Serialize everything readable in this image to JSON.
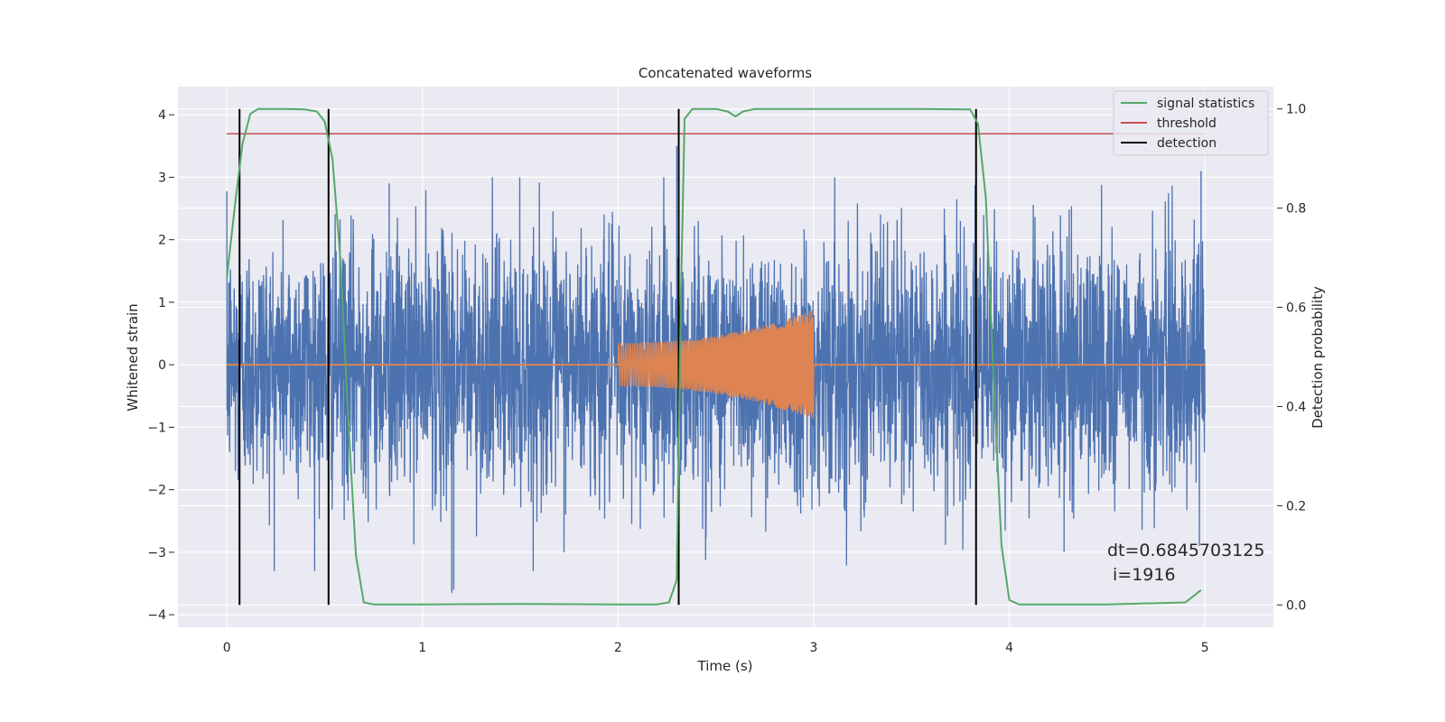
{
  "chart_data": {
    "type": "line",
    "title": "Concatenated waveforms",
    "xlabel": "Time (s)",
    "ylabel": "Whitened strain",
    "y2label": "Detection probability",
    "xlim": [
      -0.25,
      5.35
    ],
    "ylim": [
      -4.2,
      4.45
    ],
    "y2lim": [
      -0.045,
      1.045
    ],
    "xticks": [
      0,
      1,
      2,
      3,
      4,
      5
    ],
    "yticks": [
      -4,
      -3,
      -2,
      -1,
      0,
      1,
      2,
      3,
      4
    ],
    "y2ticks": [
      0.0,
      0.2,
      0.4,
      0.6,
      0.8,
      1.0
    ],
    "grid": true,
    "legend_position": "top-right",
    "style": {
      "background": "#eaeaf2",
      "grid_color": "#ffffff",
      "noise_color": "#4c72b0",
      "template_color": "#dd8452",
      "stat_color": "#55a868",
      "threshold_color": "#c44e52",
      "detection_color": "#000000"
    },
    "series": [
      {
        "name": "",
        "axis": "left",
        "kind": "whitened noise",
        "x_range": [
          0,
          5
        ],
        "amplitude_core": 1.0,
        "peak_values": [
          3.5,
          3.1,
          2.9,
          -3.65,
          -3.6
        ]
      },
      {
        "name": "",
        "axis": "left",
        "kind": "chirp template",
        "segments": [
          {
            "x_start": 2.0,
            "x_end": 3.0,
            "amp_start": 0.35,
            "amp_end": 0.88
          }
        ]
      },
      {
        "name": "signal statistics",
        "axis": "right",
        "x": [
          0.0,
          0.04,
          0.08,
          0.12,
          0.16,
          0.22,
          0.3,
          0.4,
          0.46,
          0.5,
          0.54,
          0.58,
          0.62,
          0.66,
          0.7,
          0.75,
          1.0,
          1.5,
          2.0,
          2.2,
          2.26,
          2.3,
          2.32,
          2.34,
          2.38,
          2.5,
          2.56,
          2.6,
          2.64,
          2.7,
          3.0,
          3.5,
          3.8,
          3.84,
          3.88,
          3.92,
          3.96,
          4.0,
          4.05,
          4.5,
          4.9,
          4.98
        ],
        "values": [
          0.66,
          0.8,
          0.93,
          0.99,
          1.0,
          1.0,
          1.0,
          0.999,
          0.995,
          0.975,
          0.9,
          0.7,
          0.38,
          0.1,
          0.005,
          0.001,
          0.001,
          0.002,
          0.001,
          0.001,
          0.005,
          0.05,
          0.6,
          0.98,
          1.0,
          1.0,
          0.995,
          0.985,
          0.995,
          1.0,
          1.0,
          1.0,
          0.999,
          0.97,
          0.82,
          0.45,
          0.12,
          0.01,
          0.001,
          0.001,
          0.005,
          0.03
        ]
      },
      {
        "name": "threshold",
        "axis": "right",
        "x": [
          0,
          5
        ],
        "values": [
          0.95,
          0.95
        ]
      },
      {
        "name": "detection",
        "axis": "right",
        "x_positions": [
          0.065,
          0.52,
          2.31,
          3.83
        ],
        "y_from": 0.0,
        "y_to": 1.0
      }
    ],
    "annotations": [
      "dt=0.6845703125",
      "i=1916"
    ]
  }
}
